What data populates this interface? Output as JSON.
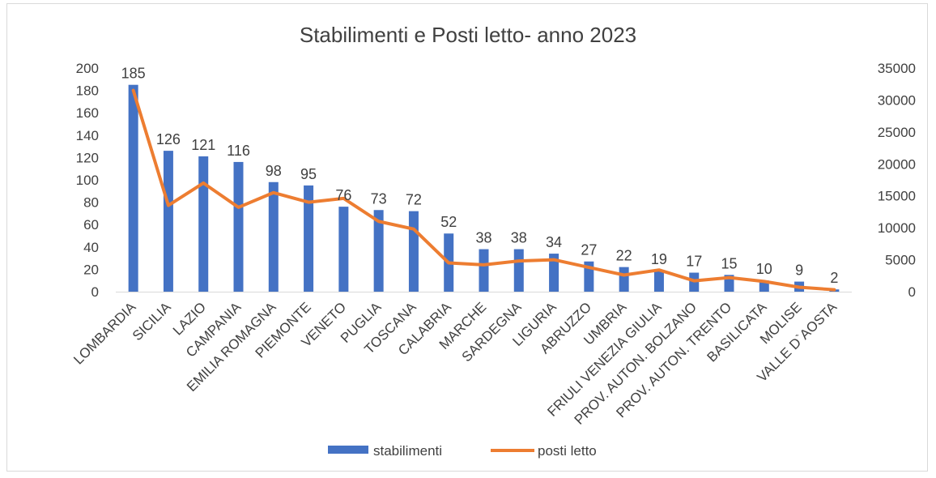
{
  "chart_data": {
    "type": "bar",
    "title": "Stabilimenti e Posti letto- anno 2023",
    "categories": [
      "LOMBARDIA",
      "SICILIA",
      "LAZIO",
      "CAMPANIA",
      "EMILIA ROMAGNA",
      "PIEMONTE",
      "VENETO",
      "PUGLIA",
      "TOSCANA",
      "CALABRIA",
      "MARCHE",
      "SARDEGNA",
      "LIGURIA",
      "ABRUZZO",
      "UMBRIA",
      "FRIULI VENEZIA GIULIA",
      "PROV. AUTON. BOLZANO",
      "PROV. AUTON. TRENTO",
      "BASILICATA",
      "MOLISE",
      "VALLE D`AOSTA"
    ],
    "series": [
      {
        "name": "stabilimenti",
        "type": "bar",
        "axis": "left",
        "color": "#4472c4",
        "values": [
          185,
          126,
          121,
          116,
          98,
          95,
          76,
          73,
          72,
          52,
          38,
          38,
          34,
          27,
          22,
          19,
          17,
          15,
          10,
          9,
          2
        ],
        "data_labels": true
      },
      {
        "name": "posti letto",
        "type": "line",
        "axis": "right",
        "color": "#ed7d31",
        "values": [
          31500,
          13500,
          17000,
          13200,
          15500,
          14000,
          14600,
          11000,
          9800,
          4500,
          4200,
          4800,
          5000,
          3800,
          2600,
          3400,
          1700,
          2200,
          1600,
          700,
          300
        ],
        "data_labels": false
      }
    ],
    "ylim_left": [
      0,
      200
    ],
    "yticks_left": [
      "0",
      "20",
      "40",
      "60",
      "80",
      "100",
      "120",
      "140",
      "160",
      "180",
      "200"
    ],
    "ylim_right": [
      0,
      35000
    ],
    "yticks_right": [
      "0",
      "5000",
      "10000",
      "15000",
      "20000",
      "25000",
      "30000",
      "35000"
    ],
    "grid": false,
    "legend_position": "bottom"
  }
}
